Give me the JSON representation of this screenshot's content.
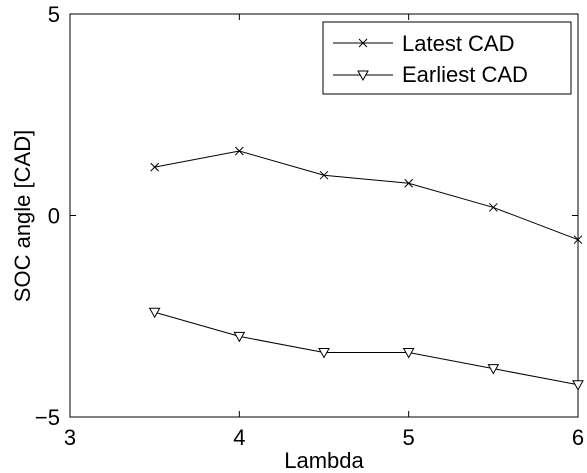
{
  "chart_data": {
    "type": "line",
    "title": "",
    "xlabel": "Lambda",
    "ylabel": "SOC angle [CAD]",
    "xlim": [
      3,
      6
    ],
    "ylim": [
      -5,
      5
    ],
    "xticks": [
      3,
      4,
      5,
      6
    ],
    "yticks": [
      -5,
      0,
      5
    ],
    "xtick_labels": [
      "3",
      "4",
      "5",
      "6"
    ],
    "ytick_labels": [
      "−5",
      "0",
      "5"
    ],
    "grid": false,
    "legend_position": "top-right",
    "series": [
      {
        "name": "Latest CAD",
        "marker": "x",
        "color": "#000000",
        "x": [
          3.5,
          4.0,
          4.5,
          5.0,
          5.5,
          6.0
        ],
        "y": [
          1.2,
          1.6,
          1.0,
          0.8,
          0.2,
          -0.6
        ]
      },
      {
        "name": "Earliest CAD",
        "marker": "triangle-down",
        "color": "#000000",
        "x": [
          3.5,
          4.0,
          4.5,
          5.0,
          5.5,
          6.0
        ],
        "y": [
          -2.4,
          -3.0,
          -3.4,
          -3.4,
          -3.8,
          -4.2
        ]
      }
    ]
  }
}
